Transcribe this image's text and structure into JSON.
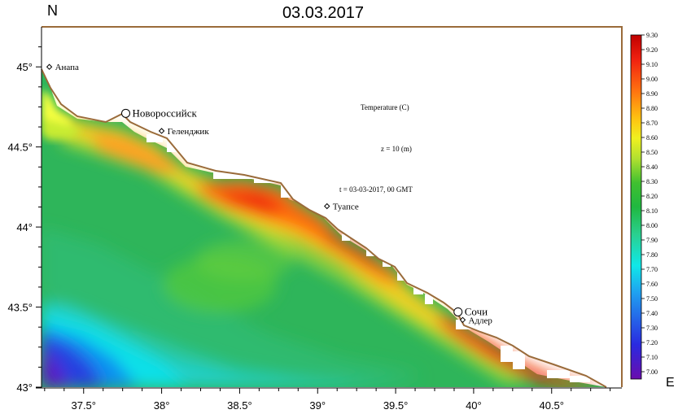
{
  "header": {
    "north_label": "N",
    "date": "03.03.2017"
  },
  "axes": {
    "east_label": "E",
    "lat_ticks": [
      {
        "value": 45.0,
        "label": "45°"
      },
      {
        "value": 44.5,
        "label": "44.5°"
      },
      {
        "value": 44.0,
        "label": "44°"
      },
      {
        "value": 43.5,
        "label": "43.5°"
      },
      {
        "value": 43.0,
        "label": "43°"
      }
    ],
    "lon_ticks": [
      {
        "value": 37.5,
        "label": "37.5°"
      },
      {
        "value": 38.0,
        "label": "38°"
      },
      {
        "value": 38.5,
        "label": "38.5°"
      },
      {
        "value": 39.0,
        "label": "39°"
      },
      {
        "value": 39.5,
        "label": "39.5°"
      },
      {
        "value": 40.0,
        "label": "40°"
      },
      {
        "value": 40.5,
        "label": "40.5°"
      }
    ],
    "lon_range": [
      37.23,
      40.95
    ],
    "lat_range": [
      43.0,
      45.25
    ]
  },
  "info": {
    "variable": "Temperature (C)",
    "depth": "z = 10 (m)",
    "time": "t = 03-03-2017, 00 GMT"
  },
  "cities": [
    {
      "name": "Анапа",
      "lon": 37.28,
      "lat": 45.0,
      "marker": "diamond"
    },
    {
      "name": "Новороссийск",
      "lon": 37.77,
      "lat": 44.71,
      "marker": "circle-large"
    },
    {
      "name": "Геленджик",
      "lon": 38.0,
      "lat": 44.6,
      "marker": "diamond"
    },
    {
      "name": "Туапсе",
      "lon": 39.06,
      "lat": 44.13,
      "marker": "diamond"
    },
    {
      "name": "Сочи",
      "lon": 39.9,
      "lat": 43.47,
      "marker": "circle-large"
    },
    {
      "name": "Адлер",
      "lon": 39.93,
      "lat": 43.42,
      "marker": "diamond"
    }
  ],
  "colorbar": {
    "min": 6.95,
    "max": 9.3,
    "labels": [
      "9.30",
      "9.20",
      "9.10",
      "9.00",
      "8.90",
      "8.80",
      "8.70",
      "8.60",
      "8.50",
      "8.40",
      "8.30",
      "8.20",
      "8.10",
      "8.00",
      "7.90",
      "7.80",
      "7.70",
      "7.60",
      "7.50",
      "7.40",
      "7.30",
      "7.20",
      "7.10",
      "7.00"
    ]
  },
  "colors": {
    "coastline": "#9a6b3a",
    "land": "#ffffff",
    "axis": "#000000"
  }
}
